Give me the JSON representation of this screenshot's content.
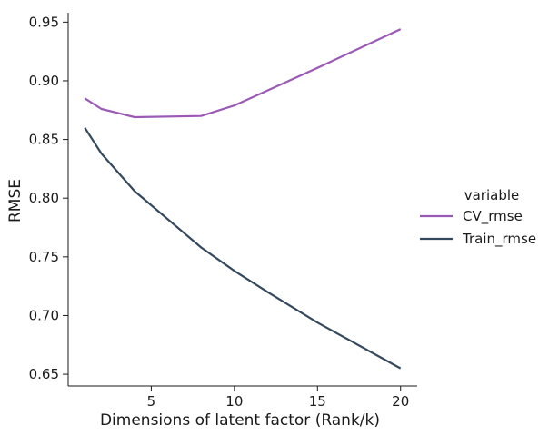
{
  "chart_data": {
    "type": "line",
    "xlabel": "Dimensions of latent factor (Rank/k)",
    "ylabel": "RMSE",
    "xlim": [
      0,
      21
    ],
    "ylim": [
      0.64,
      0.958
    ],
    "x_ticks": [
      5,
      10,
      15,
      20
    ],
    "y_ticks": [
      0.65,
      0.7,
      0.75,
      0.8,
      0.85,
      0.9,
      0.95
    ],
    "grid": false,
    "legend": {
      "title": "variable",
      "placement": "right"
    },
    "series": [
      {
        "name": "CV_rmse",
        "color": "#9b59b6",
        "x": [
          1,
          2,
          4,
          8,
          10,
          15,
          20
        ],
        "y": [
          0.885,
          0.876,
          0.869,
          0.87,
          0.879,
          0.911,
          0.944
        ]
      },
      {
        "name": "Train_rmse",
        "color": "#34495e",
        "x": [
          1,
          2,
          4,
          8,
          10,
          12,
          15,
          20
        ],
        "y": [
          0.86,
          0.838,
          0.806,
          0.758,
          0.738,
          0.72,
          0.694,
          0.655
        ]
      }
    ]
  }
}
